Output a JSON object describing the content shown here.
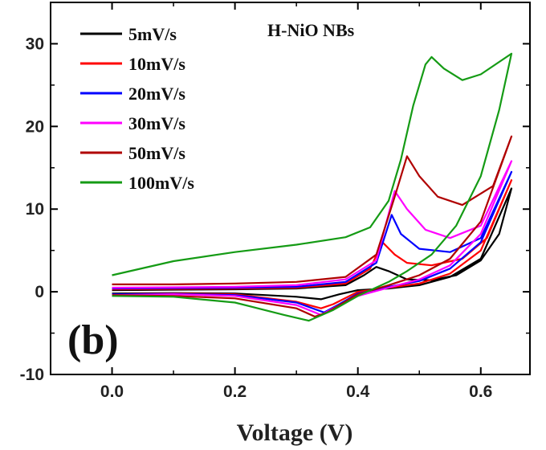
{
  "chart_data": {
    "type": "line",
    "title": "H-NiO NBs",
    "panel_label": "(b)",
    "xlabel": "Voltage (V)",
    "ylabel": "",
    "xlim": [
      -0.1,
      0.68
    ],
    "ylim": [
      -10,
      35
    ],
    "x_ticks": [
      "0.0",
      "0.2",
      "0.4",
      "0.6"
    ],
    "x_tick_values": [
      0.0,
      0.2,
      0.4,
      0.6
    ],
    "y_ticks": [
      "-10",
      "0",
      "10",
      "20",
      "30"
    ],
    "y_tick_values": [
      -10,
      0,
      10,
      20,
      30
    ],
    "grid": false,
    "legend_position": "top-left",
    "series": [
      {
        "name": "5mV/s",
        "color": "#000000",
        "anodic": [
          [
            0.0,
            0.2
          ],
          [
            0.1,
            0.25
          ],
          [
            0.2,
            0.3
          ],
          [
            0.3,
            0.4
          ],
          [
            0.38,
            0.8
          ],
          [
            0.41,
            2.0
          ],
          [
            0.43,
            3.0
          ],
          [
            0.45,
            2.5
          ],
          [
            0.48,
            1.5
          ],
          [
            0.52,
            1.4
          ],
          [
            0.56,
            2.0
          ],
          [
            0.6,
            3.8
          ],
          [
            0.63,
            7.0
          ],
          [
            0.65,
            12.5
          ]
        ],
        "cathodic": [
          [
            0.65,
            12.5
          ],
          [
            0.6,
            4.0
          ],
          [
            0.55,
            1.8
          ],
          [
            0.5,
            0.8
          ],
          [
            0.45,
            0.4
          ],
          [
            0.4,
            0.2
          ],
          [
            0.37,
            -0.3
          ],
          [
            0.34,
            -0.9
          ],
          [
            0.3,
            -0.6
          ],
          [
            0.2,
            -0.2
          ],
          [
            0.1,
            -0.15
          ],
          [
            0.0,
            -0.2
          ]
        ]
      },
      {
        "name": "10mV/s",
        "color": "#ff0000",
        "anodic": [
          [
            0.0,
            0.3
          ],
          [
            0.1,
            0.35
          ],
          [
            0.2,
            0.4
          ],
          [
            0.3,
            0.5
          ],
          [
            0.38,
            1.0
          ],
          [
            0.42,
            2.8
          ],
          [
            0.44,
            6.0
          ],
          [
            0.46,
            4.5
          ],
          [
            0.48,
            3.5
          ],
          [
            0.52,
            3.2
          ],
          [
            0.57,
            4.0
          ],
          [
            0.61,
            6.5
          ],
          [
            0.65,
            13.5
          ]
        ],
        "cathodic": [
          [
            0.65,
            13.5
          ],
          [
            0.6,
            5.0
          ],
          [
            0.55,
            2.2
          ],
          [
            0.5,
            1.0
          ],
          [
            0.45,
            0.5
          ],
          [
            0.4,
            0.0
          ],
          [
            0.36,
            -1.5
          ],
          [
            0.34,
            -2.0
          ],
          [
            0.3,
            -1.2
          ],
          [
            0.2,
            -0.3
          ],
          [
            0.1,
            -0.2
          ],
          [
            0.0,
            -0.3
          ]
        ]
      },
      {
        "name": "20mV/s",
        "color": "#0000ff",
        "anodic": [
          [
            0.0,
            0.4
          ],
          [
            0.1,
            0.45
          ],
          [
            0.2,
            0.5
          ],
          [
            0.3,
            0.6
          ],
          [
            0.38,
            1.2
          ],
          [
            0.43,
            3.5
          ],
          [
            0.455,
            9.3
          ],
          [
            0.47,
            7.0
          ],
          [
            0.5,
            5.2
          ],
          [
            0.55,
            4.8
          ],
          [
            0.6,
            6.5
          ],
          [
            0.65,
            14.5
          ]
        ],
        "cathodic": [
          [
            0.65,
            14.5
          ],
          [
            0.6,
            6.0
          ],
          [
            0.55,
            2.8
          ],
          [
            0.5,
            1.3
          ],
          [
            0.45,
            0.6
          ],
          [
            0.4,
            -0.2
          ],
          [
            0.37,
            -1.5
          ],
          [
            0.345,
            -2.5
          ],
          [
            0.3,
            -1.3
          ],
          [
            0.2,
            -0.4
          ],
          [
            0.1,
            -0.25
          ],
          [
            0.0,
            -0.3
          ]
        ]
      },
      {
        "name": "30mV/s",
        "color": "#ff00ff",
        "anodic": [
          [
            0.0,
            0.5
          ],
          [
            0.1,
            0.55
          ],
          [
            0.2,
            0.6
          ],
          [
            0.3,
            0.8
          ],
          [
            0.38,
            1.5
          ],
          [
            0.43,
            3.8
          ],
          [
            0.46,
            12.2
          ],
          [
            0.48,
            10.0
          ],
          [
            0.51,
            7.5
          ],
          [
            0.55,
            6.5
          ],
          [
            0.6,
            8.0
          ],
          [
            0.65,
            15.8
          ]
        ],
        "cathodic": [
          [
            0.65,
            15.8
          ],
          [
            0.6,
            7.0
          ],
          [
            0.55,
            3.2
          ],
          [
            0.5,
            1.5
          ],
          [
            0.45,
            0.5
          ],
          [
            0.4,
            -0.5
          ],
          [
            0.36,
            -2.0
          ],
          [
            0.34,
            -2.8
          ],
          [
            0.3,
            -1.6
          ],
          [
            0.2,
            -0.5
          ],
          [
            0.1,
            -0.3
          ],
          [
            0.0,
            -0.4
          ]
        ]
      },
      {
        "name": "50mV/s",
        "color": "#b00000",
        "anodic": [
          [
            0.0,
            0.9
          ],
          [
            0.1,
            0.9
          ],
          [
            0.2,
            1.0
          ],
          [
            0.3,
            1.2
          ],
          [
            0.38,
            1.8
          ],
          [
            0.43,
            4.5
          ],
          [
            0.46,
            11.5
          ],
          [
            0.48,
            16.4
          ],
          [
            0.5,
            14.0
          ],
          [
            0.53,
            11.5
          ],
          [
            0.57,
            10.5
          ],
          [
            0.62,
            12.8
          ],
          [
            0.65,
            18.8
          ]
        ],
        "cathodic": [
          [
            0.65,
            18.8
          ],
          [
            0.6,
            8.5
          ],
          [
            0.55,
            4.0
          ],
          [
            0.5,
            2.0
          ],
          [
            0.45,
            0.8
          ],
          [
            0.4,
            -0.3
          ],
          [
            0.35,
            -2.5
          ],
          [
            0.33,
            -3.0
          ],
          [
            0.3,
            -2.0
          ],
          [
            0.2,
            -0.8
          ],
          [
            0.1,
            -0.5
          ],
          [
            0.0,
            -0.4
          ]
        ]
      },
      {
        "name": "100mV/s",
        "color": "#159b15",
        "anodic": [
          [
            0.0,
            2.0
          ],
          [
            0.1,
            3.7
          ],
          [
            0.2,
            4.8
          ],
          [
            0.3,
            5.7
          ],
          [
            0.38,
            6.6
          ],
          [
            0.42,
            7.8
          ],
          [
            0.45,
            11.0
          ],
          [
            0.47,
            16.0
          ],
          [
            0.49,
            22.5
          ],
          [
            0.51,
            27.5
          ],
          [
            0.52,
            28.4
          ],
          [
            0.54,
            27.0
          ],
          [
            0.57,
            25.6
          ],
          [
            0.6,
            26.3
          ],
          [
            0.65,
            28.8
          ]
        ],
        "cathodic": [
          [
            0.65,
            28.8
          ],
          [
            0.63,
            22.0
          ],
          [
            0.6,
            14.0
          ],
          [
            0.56,
            8.0
          ],
          [
            0.52,
            4.5
          ],
          [
            0.48,
            2.5
          ],
          [
            0.45,
            1.2
          ],
          [
            0.4,
            -0.5
          ],
          [
            0.36,
            -2.2
          ],
          [
            0.32,
            -3.5
          ],
          [
            0.28,
            -2.8
          ],
          [
            0.2,
            -1.3
          ],
          [
            0.1,
            -0.6
          ],
          [
            0.0,
            -0.5
          ]
        ]
      }
    ]
  }
}
